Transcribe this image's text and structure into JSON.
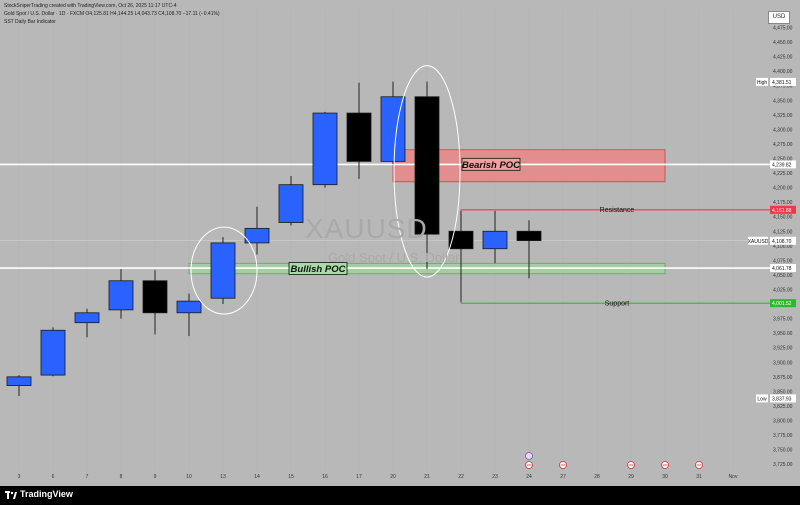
{
  "header": {
    "line1": "StockSniperTrading created with TradingView.com, Oct 26, 2025 11:17 UTC-4",
    "line2": "Gold Spot / U.S. Dollar · 1D · FXCM  O4,125.81  H4,144.25  L4,043.73  C4,108.70  −17.11 (−0.41%)",
    "line3": "SST Daily Bar Indicator"
  },
  "watermark": {
    "symbol": "XAUUSD",
    "name": "Gold Spot / U.S. Dollar"
  },
  "currency": "USD",
  "branding": "TradingView",
  "colors": {
    "background": "#b8b8b8",
    "bull": "#2962ff",
    "bear": "#000000",
    "resistance": "#f23645",
    "support": "#2eb82e",
    "bearish_zone": "#f08080",
    "bullish_zone": "#9ed49e"
  },
  "chart_data": {
    "type": "candlestick",
    "y_axis_ticks": [
      "3,725.00",
      "3,750.00",
      "3,775.00",
      "3,800.00",
      "3,825.00",
      "3,850.00",
      "3,875.00",
      "3,900.00",
      "3,925.00",
      "3,950.00",
      "3,975.00",
      "4,000.00",
      "4,025.00",
      "4,050.00",
      "4,075.00",
      "4,100.00",
      "4,125.00",
      "4,150.00",
      "4,175.00",
      "4,200.00",
      "4,225.00",
      "4,250.00",
      "4,275.00",
      "4,300.00",
      "4,325.00",
      "4,350.00",
      "4,375.00",
      "4,400.00",
      "4,425.00",
      "4,450.00",
      "4,475.00"
    ],
    "y_tick_values": [
      3725,
      3750,
      3775,
      3800,
      3825,
      3850,
      3875,
      3900,
      3925,
      3950,
      3975,
      4000,
      4025,
      4050,
      4075,
      4100,
      4125,
      4150,
      4175,
      4200,
      4225,
      4250,
      4275,
      4300,
      4325,
      4350,
      4375,
      4400,
      4425,
      4450,
      4475
    ],
    "ylim": [
      3715,
      4505
    ],
    "x_axis_labels": [
      "3",
      "6",
      "7",
      "8",
      "9",
      "10",
      "13",
      "14",
      "15",
      "16",
      "17",
      "20",
      "21",
      "22",
      "23",
      "24",
      "27",
      "28",
      "29",
      "30",
      "31",
      "Nov"
    ],
    "x_label_index": [
      0,
      1,
      2,
      3,
      4,
      5,
      6,
      7,
      8,
      9,
      10,
      11,
      12,
      13,
      14,
      15,
      16,
      17,
      18,
      19,
      20,
      21
    ],
    "candles": [
      {
        "d": "3",
        "o": 3860,
        "h": 3878,
        "l": 3842,
        "c": 3875
      },
      {
        "d": "6",
        "o": 3878,
        "h": 3960,
        "l": 3876,
        "c": 3955
      },
      {
        "d": "7",
        "o": 3968,
        "h": 3992,
        "l": 3943,
        "c": 3985
      },
      {
        "d": "8",
        "o": 3990,
        "h": 4060,
        "l": 3975,
        "c": 4040
      },
      {
        "d": "9",
        "o": 4040,
        "h": 4058,
        "l": 3948,
        "c": 3985
      },
      {
        "d": "10",
        "o": 3985,
        "h": 4018,
        "l": 3945,
        "c": 4005
      },
      {
        "d": "13",
        "o": 4010,
        "h": 4115,
        "l": 4000,
        "c": 4105
      },
      {
        "d": "14",
        "o": 4105,
        "h": 4167,
        "l": 4085,
        "c": 4130
      },
      {
        "d": "15",
        "o": 4140,
        "h": 4220,
        "l": 4135,
        "c": 4205
      },
      {
        "d": "16",
        "o": 4205,
        "h": 4330,
        "l": 4200,
        "c": 4328
      },
      {
        "d": "17",
        "o": 4328,
        "h": 4380,
        "l": 4215,
        "c": 4245
      },
      {
        "d": "20",
        "o": 4245,
        "h": 4382,
        "l": 4240,
        "c": 4356
      },
      {
        "d": "21",
        "o": 4356,
        "h": 4382,
        "l": 4060,
        "c": 4120
      },
      {
        "d": "22",
        "o": 4125,
        "h": 4160,
        "l": 4004,
        "c": 4095
      },
      {
        "d": "23",
        "o": 4095,
        "h": 4160,
        "l": 4070,
        "c": 4125
      },
      {
        "d": "24",
        "o": 4125,
        "h": 4144,
        "l": 4044,
        "c": 4109
      }
    ],
    "levels": [
      {
        "name": "High",
        "value": 4381.51,
        "label": "4,381.51"
      },
      {
        "name": "",
        "value": 4239.82,
        "label": "4,239.82"
      },
      {
        "name": "Resistance",
        "value": 4161.88,
        "label": "4,161.88"
      },
      {
        "name": "XAUUSD",
        "value": 4108.7,
        "label": "4,108.70"
      },
      {
        "name": "",
        "value": 4061.78,
        "label": "4,061.78"
      },
      {
        "name": "Support",
        "value": 4001.52,
        "label": "4,001.52"
      },
      {
        "name": "Low",
        "value": 3837.93,
        "label": "3,837.93"
      }
    ],
    "zones": [
      {
        "label": "Bearish POC",
        "top": 4265,
        "bottom": 4210,
        "from_index": 11.0,
        "to_index": 19.0
      },
      {
        "label": "Bullish POC",
        "top": 4070,
        "bottom": 4052,
        "from_index": 5.0,
        "to_index": 19.0
      }
    ],
    "resistance": {
      "label": "Resistance",
      "value": 4161.88
    },
    "support": {
      "label": "Support",
      "value": 4001.52
    }
  }
}
